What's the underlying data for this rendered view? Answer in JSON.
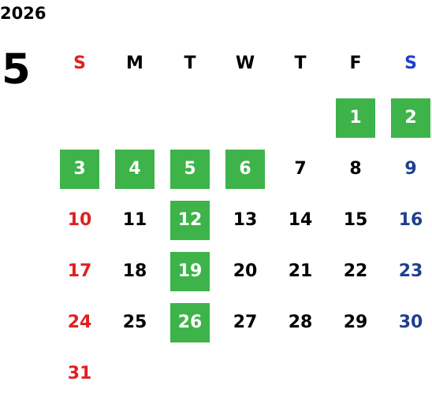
{
  "calendar": {
    "year": "2026",
    "month": "5",
    "weekdays": [
      "S",
      "M",
      "T",
      "W",
      "T",
      "F",
      "S"
    ],
    "weeks": [
      [
        "",
        "",
        "",
        "",
        "",
        "1",
        "2"
      ],
      [
        "3",
        "4",
        "5",
        "6",
        "7",
        "8",
        "9"
      ],
      [
        "10",
        "11",
        "12",
        "13",
        "14",
        "15",
        "16"
      ],
      [
        "17",
        "18",
        "19",
        "20",
        "21",
        "22",
        "23"
      ],
      [
        "24",
        "25",
        "26",
        "27",
        "28",
        "29",
        "30"
      ],
      [
        "31",
        "",
        "",
        "",
        "",
        "",
        ""
      ]
    ],
    "highlighted_days": [
      "1",
      "2",
      "3",
      "4",
      "5",
      "6",
      "12",
      "19",
      "26"
    ],
    "colors": {
      "sunday": "#e02020",
      "saturday_header": "#1f3fd0",
      "saturday": "#1f3f8f",
      "highlight": "#3db34a",
      "highlight_text": "#ffffff"
    }
  }
}
